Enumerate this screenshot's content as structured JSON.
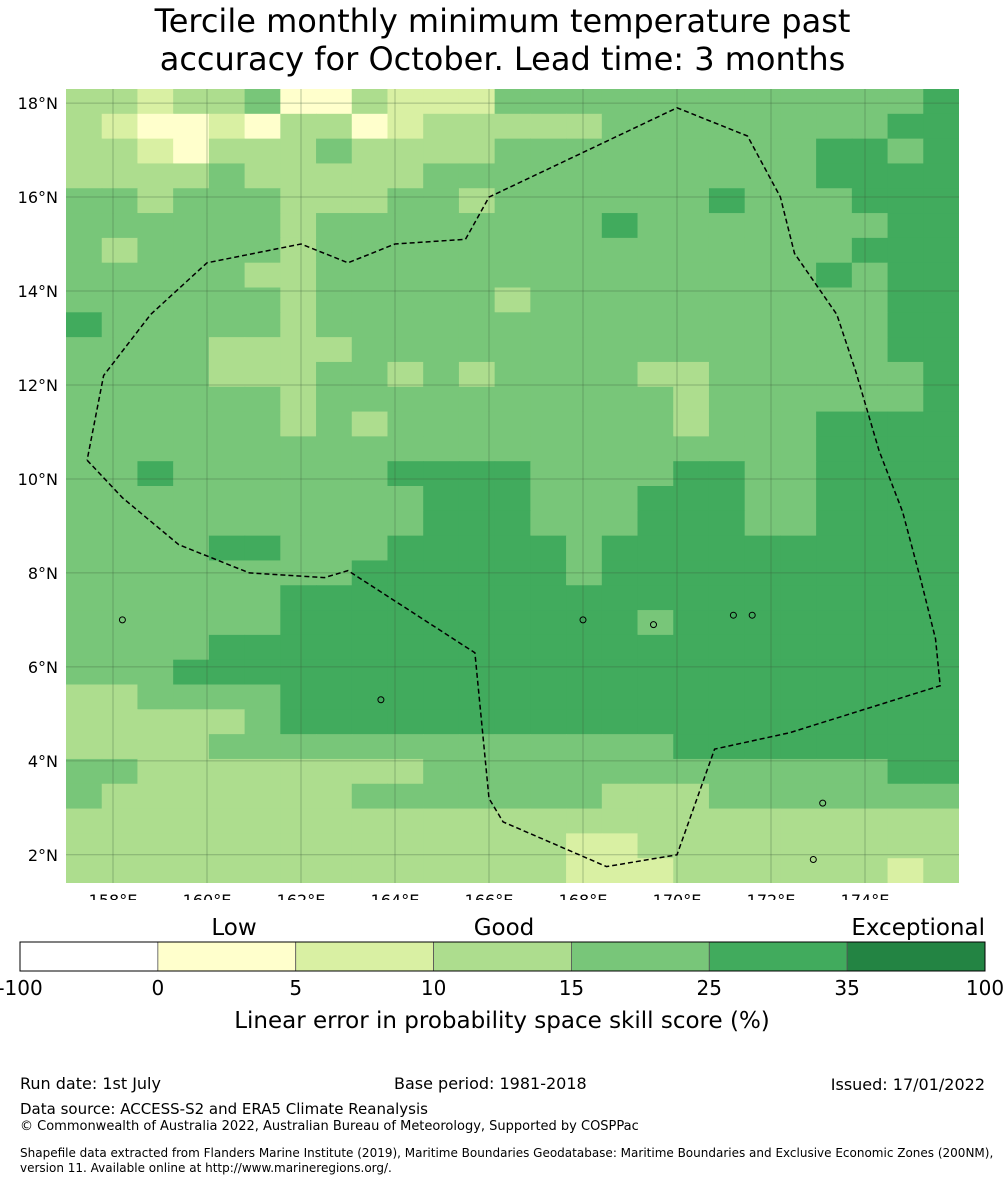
{
  "title": {
    "line1": "Tercile monthly minimum temperature past",
    "line2": "accuracy for October. Lead time: 3 months"
  },
  "map": {
    "lon_range": [
      157,
      176
    ],
    "lat_range": [
      1.4,
      18.3
    ],
    "x_ticks": [
      {
        "value": 158,
        "label": "158°E"
      },
      {
        "value": 160,
        "label": "160°E"
      },
      {
        "value": 162,
        "label": "162°E"
      },
      {
        "value": 164,
        "label": "164°E"
      },
      {
        "value": 166,
        "label": "166°E"
      },
      {
        "value": 168,
        "label": "168°E"
      },
      {
        "value": 170,
        "label": "170°E"
      },
      {
        "value": 172,
        "label": "172°E"
      },
      {
        "value": 174,
        "label": "174°E"
      }
    ],
    "y_ticks": [
      {
        "value": 2,
        "label": "2°N"
      },
      {
        "value": 4,
        "label": "4°N"
      },
      {
        "value": 6,
        "label": "6°N"
      },
      {
        "value": 8,
        "label": "8°N"
      },
      {
        "value": 10,
        "label": "10°N"
      },
      {
        "value": 12,
        "label": "12°N"
      },
      {
        "value": 14,
        "label": "14°N"
      },
      {
        "value": 16,
        "label": "16°N"
      },
      {
        "value": 18,
        "label": "18°N"
      }
    ],
    "grid_origin": [
      157,
      18.3
    ],
    "cell_size_deg": [
      0.833,
      0.555
    ],
    "cell_classes_note_skipped": null,
    "grid_rows": [
      "3323341132224444444444445",
      "3211213312333334444444455",
      "3321333433334444444445545",
      "3333433333444444444445555",
      "4434443334434444445444555",
      "4444443444444445444444455",
      "4344443444444444444444555",
      "4444433444444444444445455",
      "4444443444443444444444455",
      "5444443444444444444444455",
      "4444333344444444444444455",
      "4444333443434444334444445",
      "4444443444444444434444445",
      "4444443434444444434445555",
      "4444444444444444444445555",
      "4454444445555444455445555",
      "4444444444555444555445555",
      "4444444444555444555445555",
      "4444554445555545555555555",
      "4444444455555545555555555",
      "4444445555555555555555555",
      "4444445555555555455555555",
      "4444555555555555555555555",
      "4445555555555555555555555",
      "3344445555555555555555555",
      "3333345555555555555555555",
      "3333444444444444455555555",
      "4433333333444444444444455",
      "4333333344444443334444444",
      "3333333333333333333333333",
      "3333333333333322333333333",
      "3333333333333322233333323"
    ],
    "colors": {
      "1": "#ffffcc",
      "2": "#d9f0a3",
      "3": "#addd8e",
      "4": "#78c679",
      "5": "#41ab5d",
      "6": "#238443"
    }
  },
  "colorbar": {
    "group_labels": [
      "Low",
      "Good",
      "Exceptional"
    ],
    "bins": [
      {
        "color": "#ffffff"
      },
      {
        "color": "#ffffcc"
      },
      {
        "color": "#d9f0a3"
      },
      {
        "color": "#addd8e"
      },
      {
        "color": "#78c679"
      },
      {
        "color": "#41ab5d"
      },
      {
        "color": "#238443"
      }
    ],
    "tick_labels": [
      "-100",
      "0",
      "5",
      "10",
      "15",
      "25",
      "35",
      "100"
    ],
    "axis_label": "Linear error in probability space skill score (%)"
  },
  "footer": {
    "run_date": "Run date: 1st July",
    "base_period": "Base period: 1981-2018",
    "issued": "Issued: 17/01/2022",
    "data_source": "Data source: ACCESS-S2 and ERA5 Climate Reanalysis",
    "copyright": "© Commonwealth of Australia 2022, Australian Bureau of Meteorology, Supported by COSPPac",
    "shapefile_line1": "Shapefile data extracted from Flanders Marine Institute (2019), Maritime Boundaries Geodatabase: Maritime Boundaries and Exclusive Economic Zones (200NM),",
    "shapefile_line2": "version 11. Available online at http://www.marineregions.org/."
  }
}
